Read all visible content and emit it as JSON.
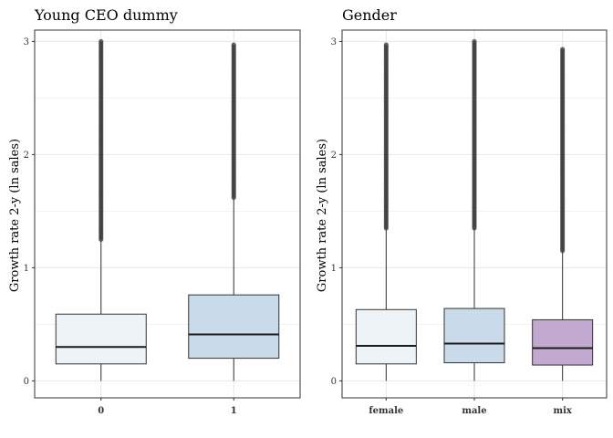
{
  "colors": {
    "panel_border": "#333333",
    "grid": "#e6e6e6",
    "outlier": "#3a3a3a",
    "median": "#1a1a1a",
    "whisker": "#333333"
  },
  "chart_data": [
    {
      "type": "box",
      "title": "Young CEO dummy",
      "ylabel": "Growth rate 2-y (ln sales)",
      "xlabel": "",
      "ylim": [
        -0.15,
        3.1
      ],
      "yticks": [
        0,
        1,
        2,
        3
      ],
      "categories": [
        "0",
        "1"
      ],
      "grid": true,
      "boxes": [
        {
          "category": "0",
          "min": 0.0,
          "q1": 0.15,
          "median": 0.3,
          "q3": 0.59,
          "whisker_high": 1.25,
          "fill": "#eef3f8",
          "outlier_range": [
            1.25,
            3.0
          ]
        },
        {
          "category": "1",
          "min": 0.0,
          "q1": 0.2,
          "median": 0.41,
          "q3": 0.76,
          "whisker_high": 1.62,
          "fill": "#c9dbea",
          "outlier_range": [
            1.62,
            2.97
          ]
        }
      ]
    },
    {
      "type": "box",
      "title": "Gender",
      "ylabel": "Growth rate 2-y (ln sales)",
      "xlabel": "",
      "ylim": [
        -0.15,
        3.1
      ],
      "yticks": [
        0,
        1,
        2,
        3
      ],
      "categories": [
        "female",
        "male",
        "mix"
      ],
      "grid": true,
      "boxes": [
        {
          "category": "female",
          "min": 0.0,
          "q1": 0.15,
          "median": 0.31,
          "q3": 0.63,
          "whisker_high": 1.35,
          "fill": "#eef3f8",
          "outlier_range": [
            1.35,
            2.97
          ]
        },
        {
          "category": "male",
          "min": 0.0,
          "q1": 0.16,
          "median": 0.33,
          "q3": 0.64,
          "whisker_high": 1.35,
          "fill": "#c9dbea",
          "outlier_range": [
            1.35,
            3.0
          ]
        },
        {
          "category": "mix",
          "min": 0.0,
          "q1": 0.14,
          "median": 0.29,
          "q3": 0.54,
          "whisker_high": 1.15,
          "fill": "#c2a9d0",
          "outlier_range": [
            1.15,
            2.93
          ]
        }
      ]
    }
  ]
}
